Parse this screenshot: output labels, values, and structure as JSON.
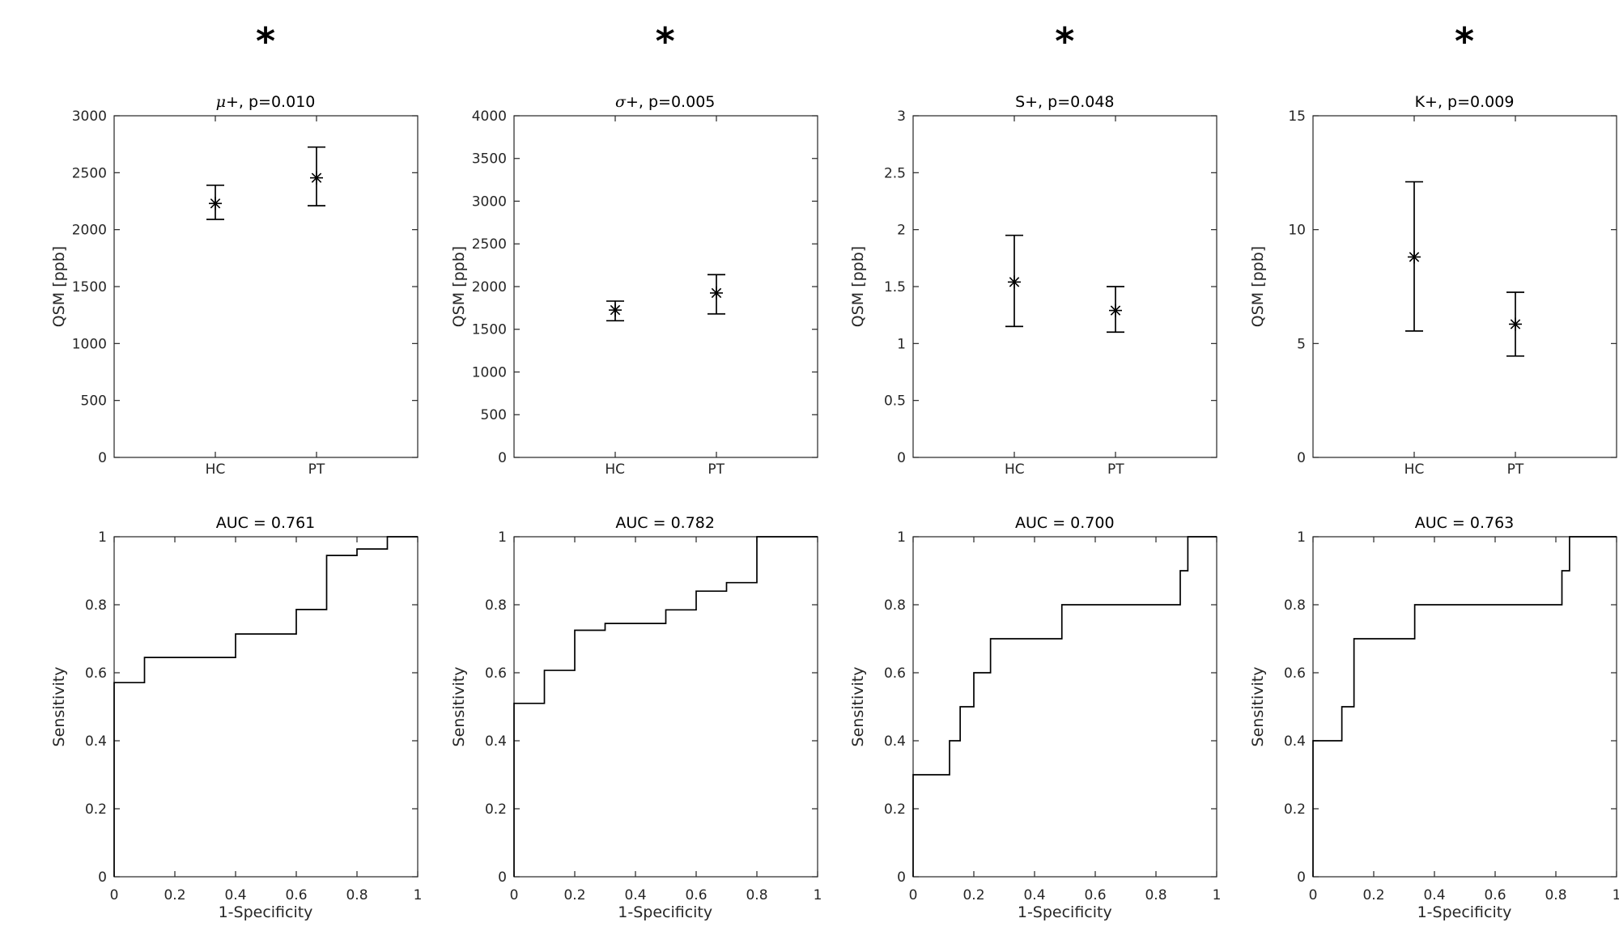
{
  "figure": {
    "background": "#ffffff",
    "axis_color": "#262626",
    "line_color": "#000000",
    "rows": [
      "errorbar-plots",
      "roc-curves"
    ],
    "significance_marker": "*"
  },
  "chart_data": [
    {
      "type": "errorbar",
      "significance": "*",
      "title": {
        "sym": "μ",
        "rest": "+, p=0.010"
      },
      "p_value": 0.01,
      "ylabel": "QSM [ppb]",
      "categories": [
        "HC",
        "PT"
      ],
      "ylim": [
        0,
        3000
      ],
      "yticks": [
        0,
        500,
        1000,
        1500,
        2000,
        2500,
        3000
      ],
      "ytick_labels": [
        "0",
        "500",
        "1000",
        "1500",
        "2000",
        "2500",
        "3000"
      ],
      "series": [
        {
          "name": "HC",
          "mean": 2230,
          "lo": 2090,
          "hi": 2390
        },
        {
          "name": "PT",
          "mean": 2455,
          "lo": 2210,
          "hi": 2725
        }
      ]
    },
    {
      "type": "errorbar",
      "significance": "*",
      "title": {
        "sym": "σ",
        "rest": "+, p=0.005"
      },
      "p_value": 0.005,
      "ylabel": "QSM [ppb]",
      "categories": [
        "HC",
        "PT"
      ],
      "ylim": [
        0,
        4000
      ],
      "yticks": [
        0,
        500,
        1000,
        1500,
        2000,
        2500,
        3000,
        3500,
        4000
      ],
      "ytick_labels": [
        "0",
        "500",
        "1000",
        "1500",
        "2000",
        "2500",
        "3000",
        "3500",
        "4000"
      ],
      "series": [
        {
          "name": "HC",
          "mean": 1725,
          "lo": 1600,
          "hi": 1830
        },
        {
          "name": "PT",
          "mean": 1925,
          "lo": 1680,
          "hi": 2140
        }
      ]
    },
    {
      "type": "errorbar",
      "significance": "*",
      "title": {
        "sym": "S",
        "rest": "+, p=0.048"
      },
      "p_value": 0.048,
      "ylabel": "QSM [ppb]",
      "categories": [
        "HC",
        "PT"
      ],
      "ylim": [
        0,
        3
      ],
      "yticks": [
        0,
        0.5,
        1,
        1.5,
        2,
        2.5,
        3
      ],
      "ytick_labels": [
        "0",
        "0.5",
        "1",
        "1.5",
        "2",
        "2.5",
        "3"
      ],
      "series": [
        {
          "name": "HC",
          "mean": 1.54,
          "lo": 1.15,
          "hi": 1.95
        },
        {
          "name": "PT",
          "mean": 1.29,
          "lo": 1.1,
          "hi": 1.5
        }
      ]
    },
    {
      "type": "errorbar",
      "significance": "*",
      "title": {
        "sym": "K",
        "rest": "+, p=0.009"
      },
      "p_value": 0.009,
      "ylabel": "QSM [ppb]",
      "categories": [
        "HC",
        "PT"
      ],
      "ylim": [
        0,
        15
      ],
      "yticks": [
        0,
        5,
        10,
        15
      ],
      "ytick_labels": [
        "0",
        "5",
        "10",
        "15"
      ],
      "series": [
        {
          "name": "HC",
          "mean": 8.8,
          "lo": 5.55,
          "hi": 12.1
        },
        {
          "name": "PT",
          "mean": 5.85,
          "lo": 4.45,
          "hi": 7.25
        }
      ]
    },
    {
      "type": "line_step",
      "title": "AUC = 0.761",
      "auc": 0.761,
      "xlabel": "1-Specificity",
      "ylabel": "Sensitivity",
      "xlim": [
        0,
        1
      ],
      "ylim": [
        0,
        1
      ],
      "xticks": [
        0,
        0.2,
        0.4,
        0.6,
        0.8,
        1
      ],
      "xtick_labels": [
        "0",
        "0.2",
        "0.4",
        "0.6",
        "0.8",
        "1"
      ],
      "yticks": [
        0,
        0.2,
        0.4,
        0.6,
        0.8,
        1
      ],
      "ytick_labels": [
        "0",
        "0.2",
        "0.4",
        "0.6",
        "0.8",
        "1"
      ],
      "points": [
        [
          0,
          0
        ],
        [
          0,
          0.571
        ],
        [
          0.1,
          0.571
        ],
        [
          0.1,
          0.645
        ],
        [
          0.4,
          0.645
        ],
        [
          0.4,
          0.714
        ],
        [
          0.6,
          0.714
        ],
        [
          0.6,
          0.786
        ],
        [
          0.7,
          0.786
        ],
        [
          0.7,
          0.945
        ],
        [
          0.8,
          0.945
        ],
        [
          0.8,
          0.964
        ],
        [
          0.9,
          0.964
        ],
        [
          0.9,
          1
        ],
        [
          1,
          1
        ]
      ]
    },
    {
      "type": "line_step",
      "title": "AUC = 0.782",
      "auc": 0.782,
      "xlabel": "1-Specificity",
      "ylabel": "Sensitivity",
      "xlim": [
        0,
        1
      ],
      "ylim": [
        0,
        1
      ],
      "xticks": [
        0,
        0.2,
        0.4,
        0.6,
        0.8,
        1
      ],
      "xtick_labels": [
        "0",
        "0.2",
        "0.4",
        "0.6",
        "0.8",
        "1"
      ],
      "yticks": [
        0,
        0.2,
        0.4,
        0.6,
        0.8,
        1
      ],
      "ytick_labels": [
        "0",
        "0.2",
        "0.4",
        "0.6",
        "0.8",
        "1"
      ],
      "points": [
        [
          0,
          0
        ],
        [
          0,
          0.51
        ],
        [
          0.1,
          0.51
        ],
        [
          0.1,
          0.607
        ],
        [
          0.2,
          0.607
        ],
        [
          0.2,
          0.725
        ],
        [
          0.3,
          0.725
        ],
        [
          0.3,
          0.745
        ],
        [
          0.5,
          0.745
        ],
        [
          0.5,
          0.785
        ],
        [
          0.6,
          0.785
        ],
        [
          0.6,
          0.84
        ],
        [
          0.7,
          0.84
        ],
        [
          0.7,
          0.865
        ],
        [
          0.8,
          0.865
        ],
        [
          0.8,
          1
        ],
        [
          1,
          1
        ]
      ]
    },
    {
      "type": "line_step",
      "title": "AUC = 0.700",
      "auc": 0.7,
      "xlabel": "1-Specificity",
      "ylabel": "Sensitivity",
      "xlim": [
        0,
        1
      ],
      "ylim": [
        0,
        1
      ],
      "xticks": [
        0,
        0.2,
        0.4,
        0.6,
        0.8,
        1
      ],
      "xtick_labels": [
        "0",
        "0.2",
        "0.4",
        "0.6",
        "0.8",
        "1"
      ],
      "yticks": [
        0,
        0.2,
        0.4,
        0.6,
        0.8,
        1
      ],
      "ytick_labels": [
        "0",
        "0.2",
        "0.4",
        "0.6",
        "0.8",
        "1"
      ],
      "points": [
        [
          0,
          0
        ],
        [
          0,
          0.3
        ],
        [
          0.12,
          0.3
        ],
        [
          0.12,
          0.4
        ],
        [
          0.155,
          0.4
        ],
        [
          0.155,
          0.5
        ],
        [
          0.2,
          0.5
        ],
        [
          0.2,
          0.6
        ],
        [
          0.255,
          0.6
        ],
        [
          0.255,
          0.7
        ],
        [
          0.49,
          0.7
        ],
        [
          0.49,
          0.8
        ],
        [
          0.88,
          0.8
        ],
        [
          0.88,
          0.9
        ],
        [
          0.905,
          0.9
        ],
        [
          0.905,
          1
        ],
        [
          1,
          1
        ]
      ]
    },
    {
      "type": "line_step",
      "title": "AUC = 0.763",
      "auc": 0.763,
      "xlabel": "1-Specificity",
      "ylabel": "Sensitivity",
      "xlim": [
        0,
        1
      ],
      "ylim": [
        0,
        1
      ],
      "xticks": [
        0,
        0.2,
        0.4,
        0.6,
        0.8,
        1
      ],
      "xtick_labels": [
        "0",
        "0.2",
        "0.4",
        "0.6",
        "0.8",
        "1"
      ],
      "yticks": [
        0,
        0.2,
        0.4,
        0.6,
        0.8,
        1
      ],
      "ytick_labels": [
        "0",
        "0.2",
        "0.4",
        "0.6",
        "0.8",
        "1"
      ],
      "points": [
        [
          0,
          0
        ],
        [
          0,
          0.4
        ],
        [
          0.095,
          0.4
        ],
        [
          0.095,
          0.5
        ],
        [
          0.135,
          0.5
        ],
        [
          0.135,
          0.7
        ],
        [
          0.335,
          0.7
        ],
        [
          0.335,
          0.8
        ],
        [
          0.82,
          0.8
        ],
        [
          0.82,
          0.9
        ],
        [
          0.845,
          0.9
        ],
        [
          0.845,
          1
        ],
        [
          1,
          1
        ]
      ]
    }
  ]
}
